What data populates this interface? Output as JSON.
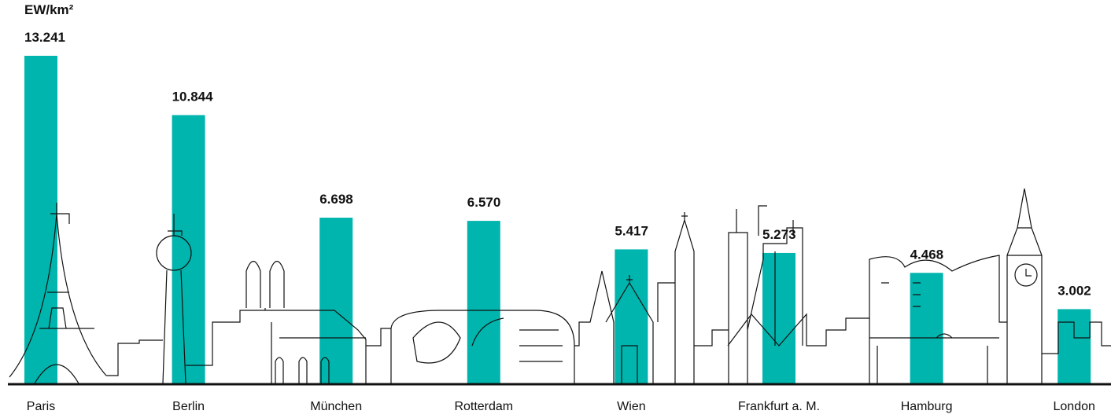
{
  "chart_data": {
    "type": "bar",
    "y_label": "EW/km²",
    "categories": [
      "Paris",
      "Berlin",
      "München",
      "Rotterdam",
      "Wien",
      "Frankfurt a. M.",
      "Hamburg",
      "London"
    ],
    "values": [
      13241,
      10844,
      6698,
      6570,
      5417,
      5273,
      4468,
      3002
    ],
    "value_labels": [
      "13.241",
      "10.844",
      "6.698",
      "6.570",
      "5.417",
      "5.273",
      "4.468",
      "3.002"
    ],
    "color": "#00b5ad"
  }
}
